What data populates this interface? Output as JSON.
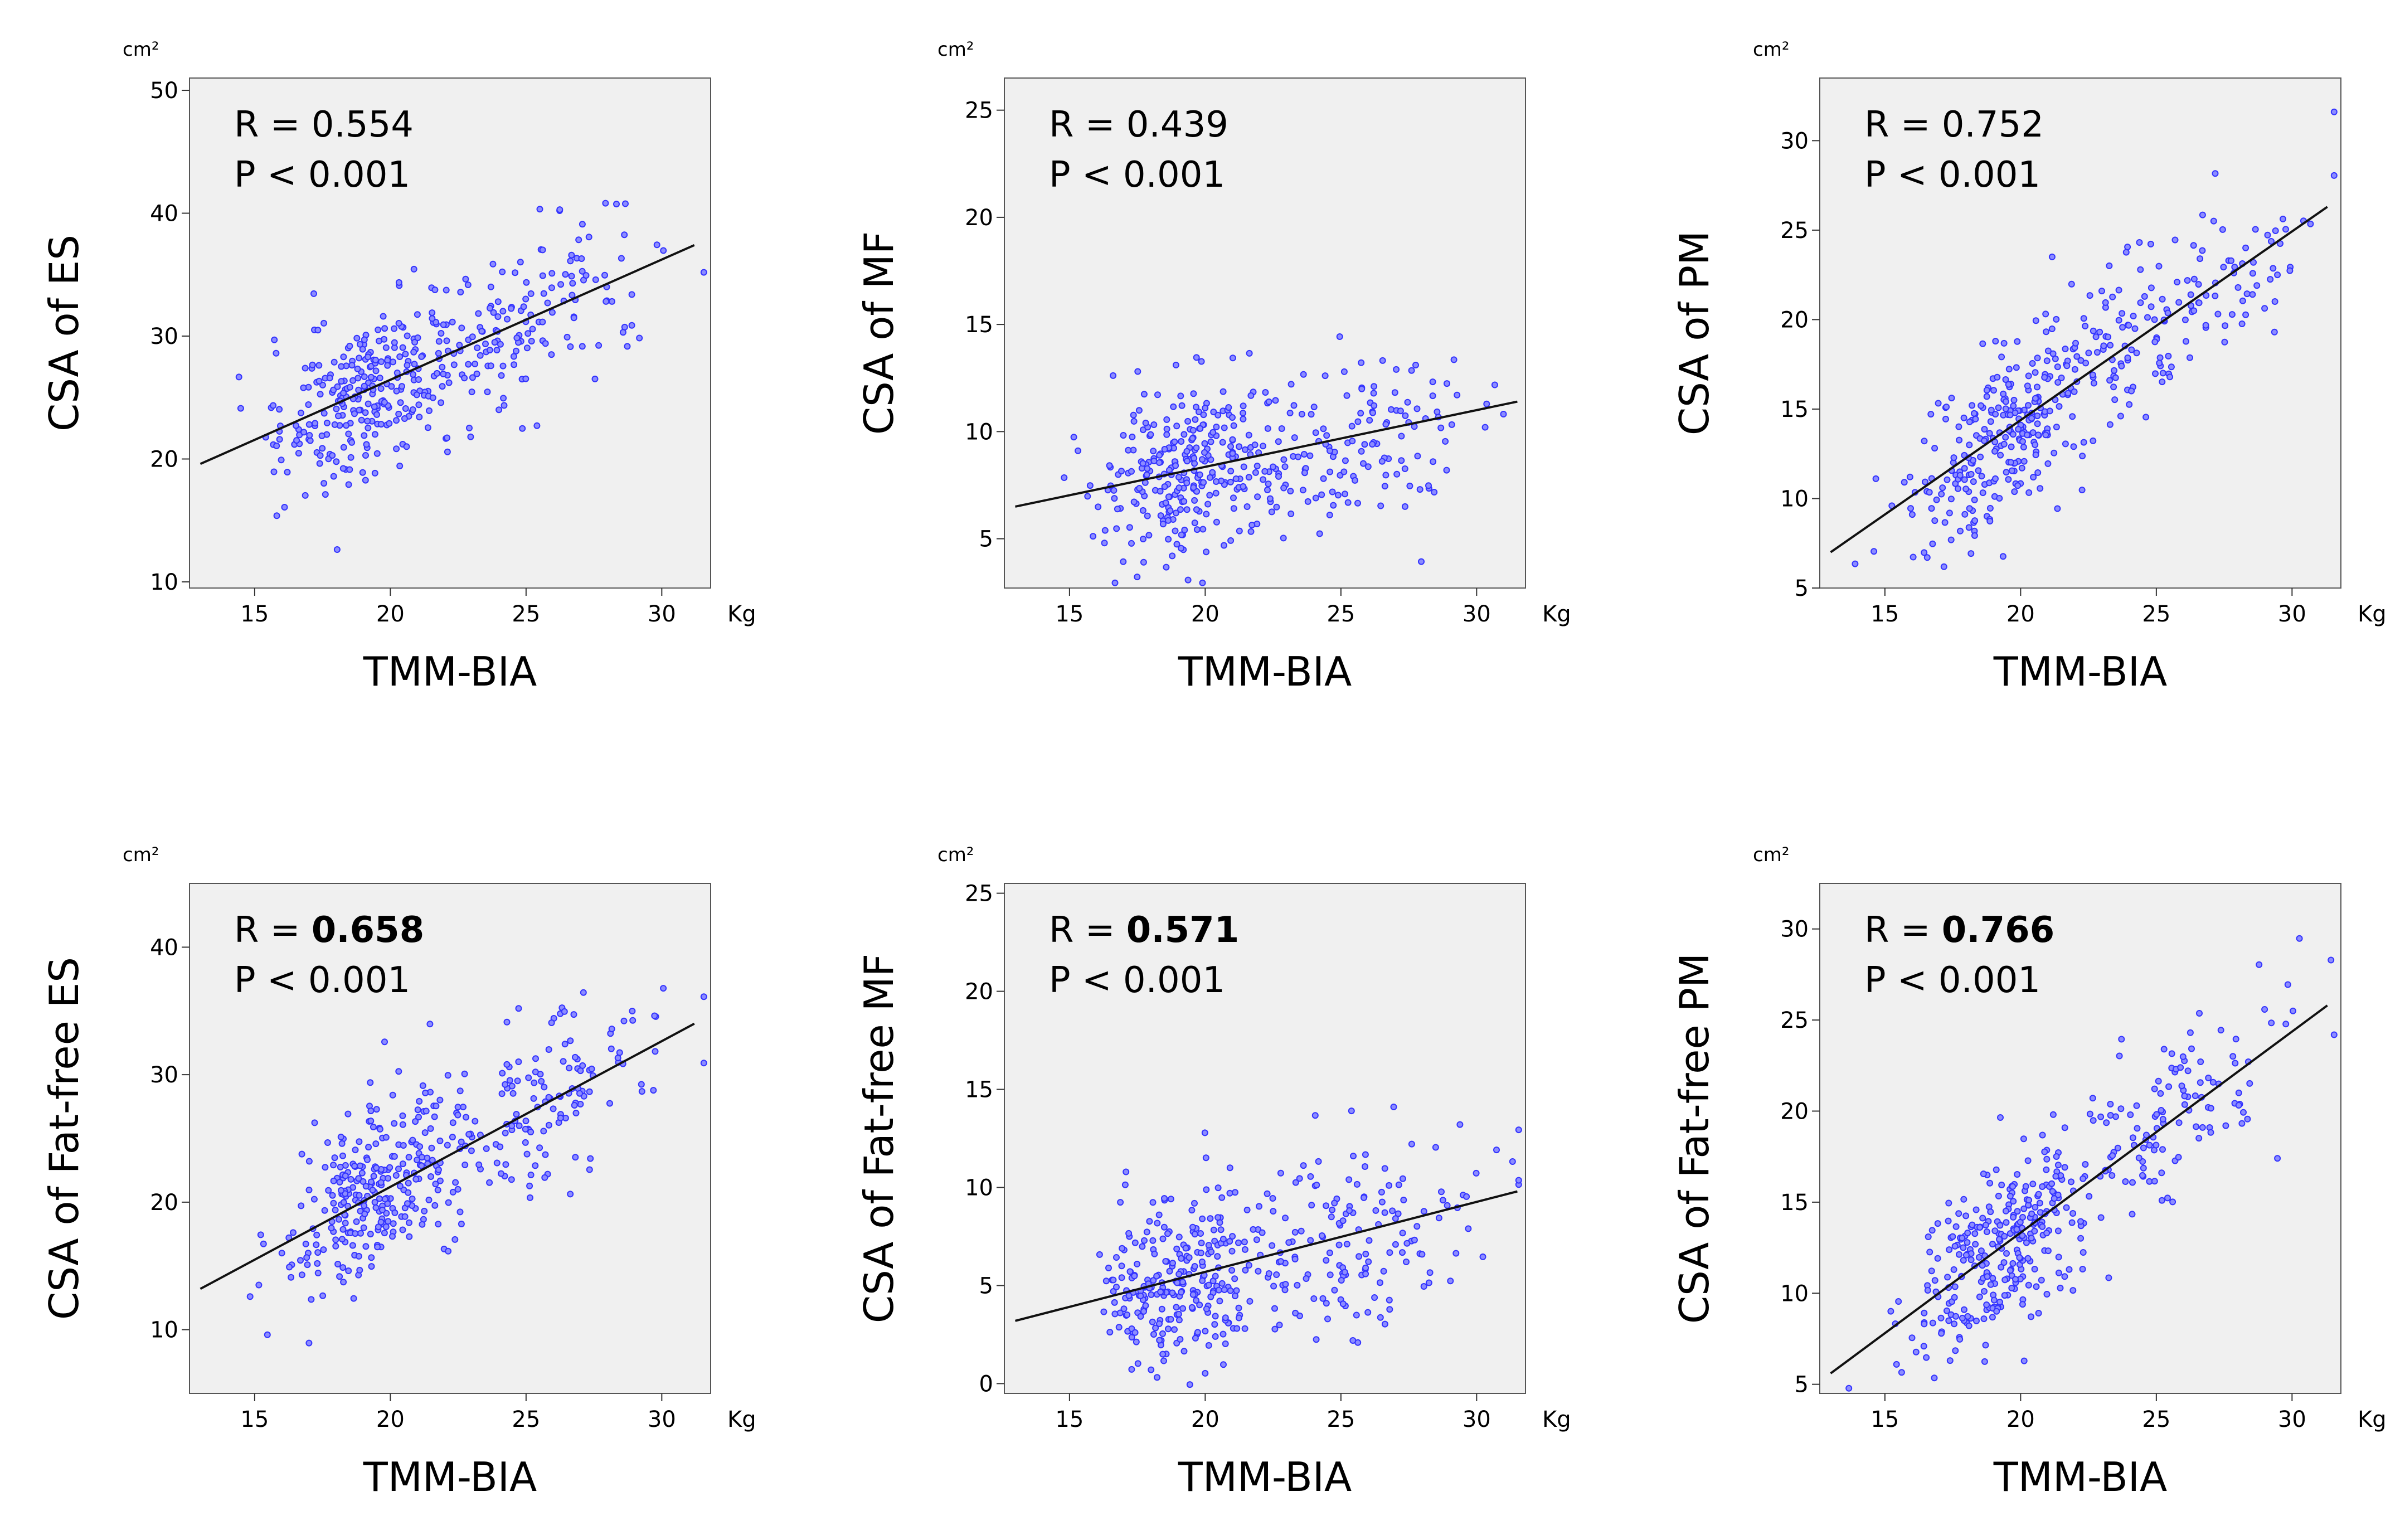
{
  "chart_data": [
    {
      "type": "scatter",
      "title": "",
      "xlabel": "TMM-BIA",
      "ylabel": "CSA of ES",
      "x_unit": "Kg",
      "y_unit": "cm²",
      "xlim": [
        12.6,
        31.8
      ],
      "ylim": [
        9.5,
        51
      ],
      "x_ticks": [
        "15",
        "20",
        "25",
        "30"
      ],
      "x_tick_values": [
        15,
        20,
        25,
        30
      ],
      "y_ticks": [
        "10",
        "20",
        "30",
        "40",
        "50"
      ],
      "y_tick_values": [
        10,
        20,
        30,
        40,
        50
      ],
      "stats": {
        "r_prefix": "R = ",
        "r_value": "0.554",
        "r_bold": false,
        "p_text": "P < 0.001"
      },
      "fit_line": {
        "x": [
          13.0,
          31.2
        ],
        "y": [
          19.6,
          37.4
        ]
      },
      "point_count": 420,
      "point_color": "#3333ff",
      "grid": false,
      "legend": "none"
    },
    {
      "type": "scatter",
      "title": "",
      "xlabel": "TMM-BIA",
      "ylabel": "CSA of MF",
      "x_unit": "Kg",
      "y_unit": "cm²",
      "xlim": [
        12.6,
        31.8
      ],
      "ylim": [
        2.7,
        26.5
      ],
      "x_ticks": [
        "15",
        "20",
        "25",
        "30"
      ],
      "x_tick_values": [
        15,
        20,
        25,
        30
      ],
      "y_ticks": [
        "5",
        "10",
        "15",
        "20",
        "25"
      ],
      "y_tick_values": [
        5,
        10,
        15,
        20,
        25
      ],
      "stats": {
        "r_prefix": "R = ",
        "r_value": "0.439",
        "r_bold": false,
        "p_text": "P < 0.001"
      },
      "fit_line": {
        "x": [
          13.0,
          31.5
        ],
        "y": [
          6.5,
          11.4
        ]
      },
      "point_count": 420,
      "point_color": "#3333ff",
      "grid": false,
      "legend": "none"
    },
    {
      "type": "scatter",
      "title": "",
      "xlabel": "TMM-BIA",
      "ylabel": "CSA of PM",
      "x_unit": "Kg",
      "y_unit": "cm²",
      "xlim": [
        12.6,
        31.8
      ],
      "ylim": [
        5,
        33.5
      ],
      "x_ticks": [
        "15",
        "20",
        "25",
        "30"
      ],
      "x_tick_values": [
        15,
        20,
        25,
        30
      ],
      "y_ticks": [
        "5",
        "10",
        "15",
        "20",
        "25",
        "30"
      ],
      "y_tick_values": [
        5,
        10,
        15,
        20,
        25,
        30
      ],
      "stats": {
        "r_prefix": "R = ",
        "r_value": "0.752",
        "r_bold": false,
        "p_text": "P < 0.001"
      },
      "fit_line": {
        "x": [
          13.0,
          31.3
        ],
        "y": [
          7.0,
          26.3
        ]
      },
      "point_count": 420,
      "point_color": "#3333ff",
      "grid": false,
      "legend": "none"
    },
    {
      "type": "scatter",
      "title": "",
      "xlabel": "TMM-BIA",
      "ylabel": "CSA of Fat-free ES",
      "x_unit": "Kg",
      "y_unit": "cm²",
      "xlim": [
        12.6,
        31.8
      ],
      "ylim": [
        5,
        45
      ],
      "x_ticks": [
        "15",
        "20",
        "25",
        "30"
      ],
      "x_tick_values": [
        15,
        20,
        25,
        30
      ],
      "y_ticks": [
        "10",
        "20",
        "30",
        "40"
      ],
      "y_tick_values": [
        10,
        20,
        30,
        40
      ],
      "stats": {
        "r_prefix": "R = ",
        "r_value": "0.658",
        "r_bold": true,
        "p_text": "P < 0.001"
      },
      "fit_line": {
        "x": [
          13.0,
          31.2
        ],
        "y": [
          13.2,
          34.0
        ]
      },
      "point_count": 420,
      "point_color": "#3333ff",
      "grid": false,
      "legend": "none"
    },
    {
      "type": "scatter",
      "title": "",
      "xlabel": "TMM-BIA",
      "ylabel": "CSA of Fat-free MF",
      "x_unit": "Kg",
      "y_unit": "cm²",
      "xlim": [
        12.6,
        31.8
      ],
      "ylim": [
        -0.5,
        25.5
      ],
      "x_ticks": [
        "15",
        "20",
        "25",
        "30"
      ],
      "x_tick_values": [
        15,
        20,
        25,
        30
      ],
      "y_ticks": [
        "0",
        "5",
        "10",
        "15",
        "20",
        "25"
      ],
      "y_tick_values": [
        0,
        5,
        10,
        15,
        20,
        25
      ],
      "stats": {
        "r_prefix": "R = ",
        "r_value": "0.571",
        "r_bold": true,
        "p_text": "P < 0.001"
      },
      "fit_line": {
        "x": [
          13.0,
          31.5
        ],
        "y": [
          3.2,
          9.8
        ]
      },
      "point_count": 420,
      "point_color": "#3333ff",
      "grid": false,
      "legend": "none"
    },
    {
      "type": "scatter",
      "title": "",
      "xlabel": "TMM-BIA",
      "ylabel": "CSA of Fat-free PM",
      "x_unit": "Kg",
      "y_unit": "cm²",
      "xlim": [
        12.6,
        31.8
      ],
      "ylim": [
        4.5,
        32.5
      ],
      "x_ticks": [
        "15",
        "20",
        "25",
        "30"
      ],
      "x_tick_values": [
        15,
        20,
        25,
        30
      ],
      "y_ticks": [
        "5",
        "10",
        "15",
        "20",
        "25",
        "30"
      ],
      "y_tick_values": [
        5,
        10,
        15,
        20,
        25,
        30
      ],
      "stats": {
        "r_prefix": "R = ",
        "r_value": "0.766",
        "r_bold": true,
        "p_text": "P < 0.001"
      },
      "fit_line": {
        "x": [
          13.0,
          31.3
        ],
        "y": [
          5.6,
          25.8
        ]
      },
      "point_count": 420,
      "point_color": "#3333ff",
      "grid": false,
      "legend": "none"
    }
  ]
}
